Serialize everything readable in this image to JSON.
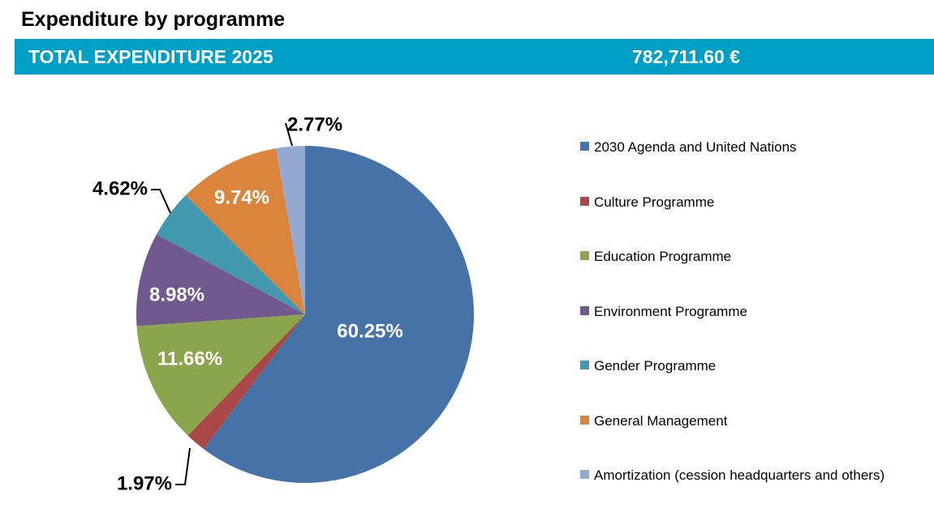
{
  "header": {
    "title": "Expenditure by programme",
    "banner_label": "TOTAL EXPENDITURE 2025",
    "banner_value": "782,711.60 €",
    "banner_color": "#009fc6"
  },
  "chart_data": {
    "type": "pie",
    "title": "Expenditure by programme",
    "start": "top",
    "direction": "clockwise",
    "legend_position": "right",
    "slices": [
      {
        "label": "2030 Agenda and United Nations",
        "value": 60.25,
        "display": "60.25%",
        "color": "#4573a7",
        "label_inside": true
      },
      {
        "label": "Culture Programme",
        "value": 1.97,
        "display": "1.97%",
        "color": "#a94846",
        "label_inside": false
      },
      {
        "label": "Education Programme",
        "value": 11.66,
        "display": "11.66%",
        "color": "#8aa54c",
        "label_inside": true
      },
      {
        "label": "Environment Programme",
        "value": 8.98,
        "display": "8.98%",
        "color": "#71588f",
        "label_inside": true
      },
      {
        "label": "Gender Programme",
        "value": 4.62,
        "display": "4.62%",
        "color": "#4198af",
        "label_inside": false
      },
      {
        "label": "General Management",
        "value": 9.74,
        "display": "9.74%",
        "color": "#db843d",
        "label_inside": true
      },
      {
        "label": "Amortization (cession headquarters and others)",
        "value": 2.77,
        "display": "2.77%",
        "color": "#93a9cf",
        "label_inside": false
      }
    ]
  }
}
